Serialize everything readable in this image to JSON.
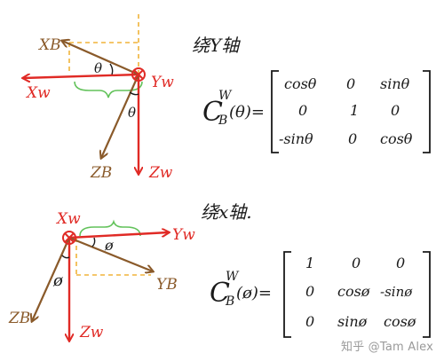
{
  "colors": {
    "world_axis": "#e02a25",
    "body_axis": "#8a5a2a",
    "bracket": "#62c25a",
    "dashed": "#f0b43a",
    "ink": "#1a1a1a"
  },
  "rotation_y": {
    "heading": "绕Y轴",
    "axes": {
      "xw": "Xw",
      "yw": "Yw",
      "zw": "Zw",
      "xb": "XB",
      "zb": "ZB"
    },
    "angle_symbol": "θ",
    "lhs_sup": "W",
    "lhs_main": "C",
    "lhs_sub": "B",
    "lhs_arg": "(θ)=",
    "matrix": [
      [
        "cosθ",
        "0",
        "sinθ"
      ],
      [
        "0",
        "1",
        "0"
      ],
      [
        "-sinθ",
        "0",
        "cosθ"
      ]
    ]
  },
  "rotation_x": {
    "heading": "绕x轴.",
    "axes": {
      "xw": "Xw",
      "yw": "Yw",
      "zw": "Zw",
      "yb": "YB",
      "zb": "ZB"
    },
    "angle_symbol": "ø",
    "lhs_sup": "W",
    "lhs_main": "C",
    "lhs_sub": "B",
    "lhs_arg": "(ø)=",
    "matrix": [
      [
        "1",
        "0",
        "0"
      ],
      [
        "0",
        "cosø",
        "-sinø"
      ],
      [
        "0",
        "sinø",
        "cosø"
      ]
    ]
  },
  "watermark": "知乎 @Tam Alex",
  "icons": [
    "x-cross-origin-icon",
    "y-cross-origin-icon"
  ]
}
